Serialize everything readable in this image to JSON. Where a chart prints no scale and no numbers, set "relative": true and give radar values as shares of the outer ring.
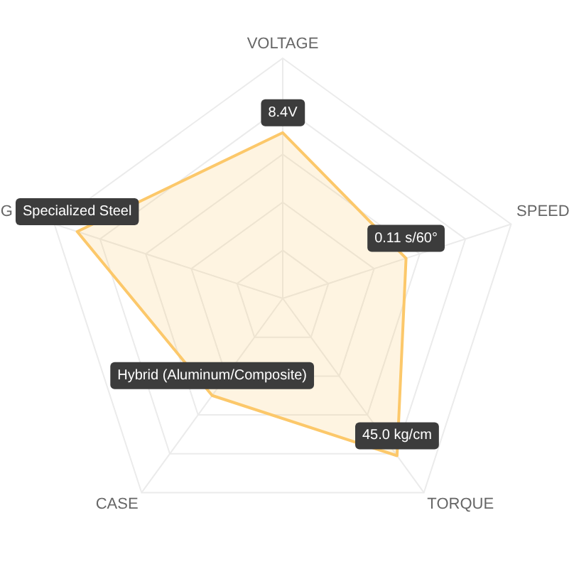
{
  "chart_data": {
    "type": "radar",
    "relative": true,
    "grid": true,
    "categories": [
      "VOLTAGE",
      "SPEED",
      "TORQUE",
      "CASE",
      "G"
    ],
    "series": [
      {
        "color": "#fcc86a",
        "values": [
          0.69,
          0.54,
          0.81,
          0.5,
          0.9
        ]
      }
    ],
    "annotations": [
      {
        "text": "8.4V",
        "x": "VOLTAGE"
      },
      {
        "text": "0.11 s/60°",
        "x": "SPEED"
      },
      {
        "text": "45.0 kg/cm",
        "x": "TORQUE"
      },
      {
        "text": "Hybrid (Aluminum/Composite)",
        "x": "CASE"
      },
      {
        "text": "Specialized Steel",
        "x": "G"
      }
    ]
  }
}
